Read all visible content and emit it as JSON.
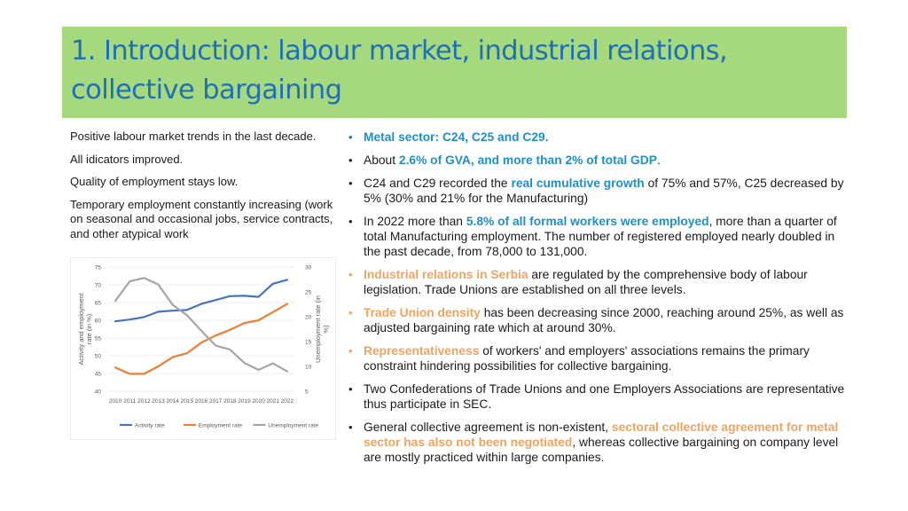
{
  "title": {
    "line1": "1. Introduction: labour market, industrial relations,",
    "line2": "collective bargaining"
  },
  "left": {
    "p1": "Positive labour market trends in the last decade.",
    "p2": "All idicators improved.",
    "p3": "Quality of employment stays low.",
    "p4": "Temporary employment constantly increasing (work on seasonal and occasional jobs, service contracts, and other atypical work"
  },
  "bullets": [
    {
      "hl": "Metal sector: C24, C25 and C29."
    },
    {
      "pre": "About ",
      "hl": "2.6% of GVA, and more than 2% of total GDP",
      "post": "."
    },
    {
      "pre": "C24 and C29 recorded the ",
      "hl": "real cumulative growth",
      "post": " of 75% and 57%, C25 decreased by 5% (30% and 21% for the Manufacturing)"
    },
    {
      "pre": "In 2022 more than ",
      "hl": "5.8% of all formal workers were employed",
      "post": ", more than a quarter of total Manufacturing employment. The number of registered employed nearly doubled in the past decade, from 78,000 to 131,000."
    },
    {
      "hl": "Industrial relations in Serbia",
      "post": " are regulated by the comprehensive body of labour legislation. Trade Unions are established on all three levels."
    },
    {
      "hl": "Trade Union density",
      "post": " has been decreasing since 2000, reaching around 25%, as well as adjusted bargaining rate which at around 30%."
    },
    {
      "hl": "Representativeness",
      "post": " of workers' and employers' associations remains the primary constraint hindering possibilities for collective bargaining."
    },
    {
      "pre": "Two Confederations of Trade Unions and one Employers Associations are representative thus participate in SEC."
    },
    {
      "pre": "General collective agreement is non-existent, ",
      "hl": "sectoral collective agreement for metal sector has also not been negotiated",
      "post": ", whereas collective bargaining on company level are mostly practiced within large companies."
    }
  ],
  "chart_data": {
    "type": "line",
    "x": [
      2010,
      2011,
      2012,
      2013,
      2014,
      2015,
      2016,
      2017,
      2018,
      2019,
      2020,
      2021,
      2022
    ],
    "ylabel": "Activity and employment rate (in %)",
    "ylabel_right": "Unemployment rate (in %)",
    "ylim": [
      40,
      75
    ],
    "ylim_right": [
      5,
      30
    ],
    "yticks": [
      40,
      45,
      50,
      55,
      60,
      65,
      70,
      75
    ],
    "yticks_right": [
      5,
      10,
      15,
      20,
      25,
      30
    ],
    "series": [
      {
        "name": "Activity rate",
        "axis": "left",
        "color": "#4472c4",
        "values": [
          59.7,
          60.2,
          60.9,
          62.4,
          62.7,
          62.9,
          64.6,
          65.7,
          66.8,
          66.9,
          66.6,
          70.3,
          71.4
        ]
      },
      {
        "name": "Employment rate",
        "axis": "left",
        "color": "#ed7d31",
        "values": [
          46.7,
          44.9,
          44.9,
          47.0,
          49.6,
          50.7,
          53.7,
          55.7,
          57.3,
          59.2,
          60.0,
          62.3,
          64.6
        ]
      },
      {
        "name": "Unemployment rate",
        "axis": "right",
        "color": "#a5a5a5",
        "values": [
          23.2,
          27.1,
          27.8,
          26.5,
          22.4,
          20.3,
          17.2,
          14.2,
          13.4,
          10.7,
          9.3,
          10.6,
          9.0
        ]
      }
    ],
    "legend_position": "bottom"
  }
}
